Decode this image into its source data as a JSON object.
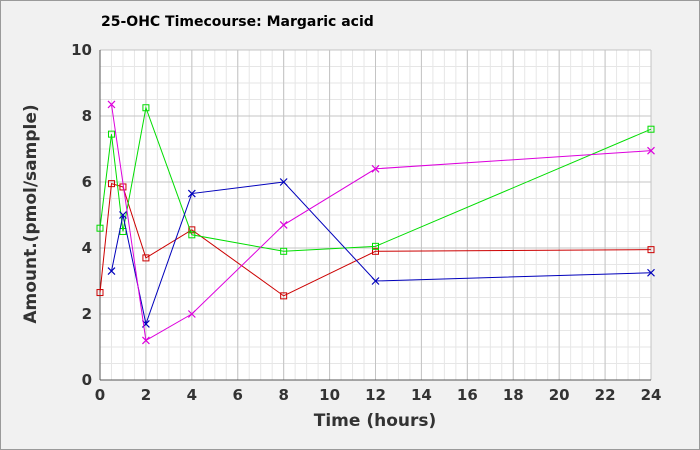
{
  "chart_data": {
    "type": "line",
    "title": "25-OHC Timecourse: Margaric acid",
    "xlabel": "Time (hours)",
    "ylabel": "Amount.(pmol/sample)",
    "xlim": [
      0,
      24
    ],
    "ylim": [
      0,
      10
    ],
    "x_ticks": [
      0,
      2,
      4,
      6,
      8,
      10,
      12,
      14,
      16,
      18,
      20,
      22,
      24
    ],
    "y_ticks": [
      0,
      2,
      4,
      6,
      8,
      10
    ],
    "grid": true,
    "legend": "none",
    "series": [
      {
        "color": "#cc0000",
        "marker": "square",
        "x": [
          0,
          0.5,
          1,
          2,
          4,
          8,
          12,
          24
        ],
        "y": [
          2.65,
          5.95,
          5.85,
          3.7,
          4.55,
          2.55,
          3.9,
          3.95
        ]
      },
      {
        "color": "#00dd00",
        "marker": "square",
        "x": [
          0,
          0.5,
          1,
          2,
          4,
          8,
          12,
          24
        ],
        "y": [
          4.6,
          7.45,
          4.5,
          8.25,
          4.4,
          3.9,
          4.05,
          7.6
        ]
      },
      {
        "color": "#0000bb",
        "marker": "x",
        "x": [
          0.5,
          1,
          2,
          4,
          8,
          12,
          24
        ],
        "y": [
          3.3,
          5.0,
          1.7,
          5.65,
          6.0,
          3.0,
          3.25
        ]
      },
      {
        "color": "#dd00dd",
        "marker": "x",
        "x": [
          0.5,
          2,
          4,
          8,
          12,
          24
        ],
        "y": [
          8.35,
          1.2,
          2.0,
          4.7,
          6.4,
          6.95
        ]
      }
    ]
  }
}
